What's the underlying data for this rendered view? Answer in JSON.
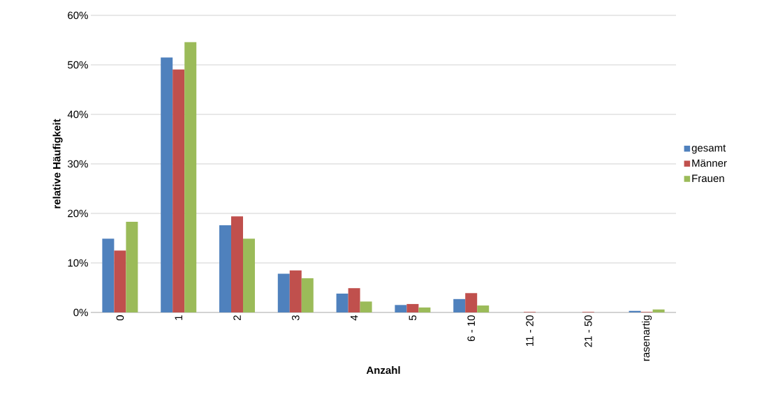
{
  "chart_data": {
    "type": "bar",
    "xlabel": "Anzahl",
    "ylabel": "relative Häufigkeit",
    "categories": [
      "0",
      "1",
      "2",
      "3",
      "4",
      "5",
      "6 - 10",
      "11 - 20",
      "21 - 50",
      "rasenartig"
    ],
    "series": [
      {
        "name": "gesamt",
        "color": "#4f81bd",
        "values": [
          14.9,
          51.5,
          17.6,
          7.8,
          3.8,
          1.5,
          2.7,
          0,
          0,
          0.3
        ]
      },
      {
        "name": "Männer",
        "color": "#c0504d",
        "values": [
          12.5,
          49.1,
          19.4,
          8.5,
          4.9,
          1.7,
          3.9,
          0.1,
          0.1,
          0.1
        ]
      },
      {
        "name": "Frauen",
        "color": "#9bbb59",
        "values": [
          18.3,
          54.6,
          14.9,
          6.9,
          2.2,
          1.0,
          1.4,
          0,
          0,
          0.6
        ]
      }
    ],
    "ylim": [
      0,
      60
    ],
    "yticks": [
      {
        "value": 0,
        "label": "0%"
      },
      {
        "value": 10,
        "label": "10%"
      },
      {
        "value": 20,
        "label": "20%"
      },
      {
        "value": 30,
        "label": "30%"
      },
      {
        "value": 40,
        "label": "40%"
      },
      {
        "value": 50,
        "label": "50%"
      },
      {
        "value": 60,
        "label": "60%"
      }
    ],
    "grid": "y",
    "legend": "right"
  }
}
